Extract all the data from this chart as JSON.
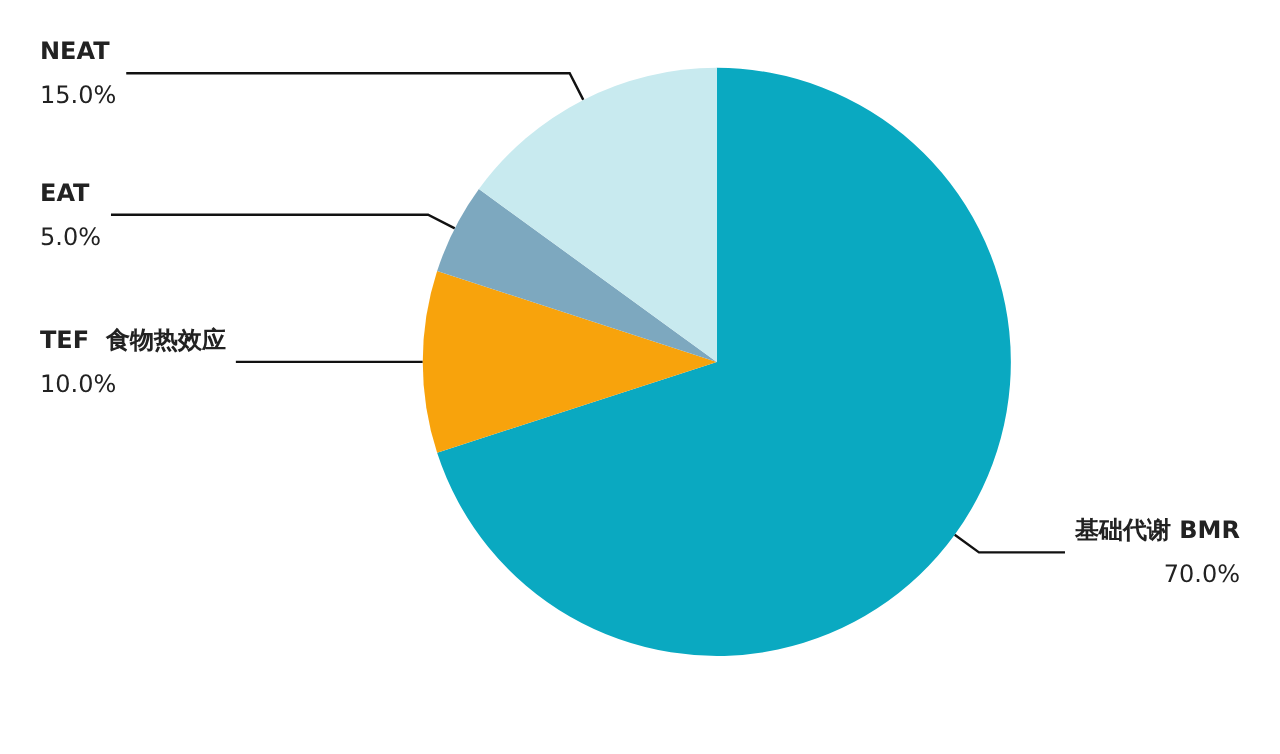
{
  "chart_data": {
    "type": "pie",
    "categories": [
      "基础代谢 BMR",
      "TEF  食物热效应",
      "EAT",
      "NEAT"
    ],
    "values": [
      70,
      10,
      5,
      15
    ],
    "value_labels": [
      "70.0%",
      "10.0%",
      "5.0%",
      "15.0%"
    ],
    "colors": [
      "#0aa9c1",
      "#f8a30c",
      "#7da8bf",
      "#c8eaef"
    ],
    "legend": false
  }
}
